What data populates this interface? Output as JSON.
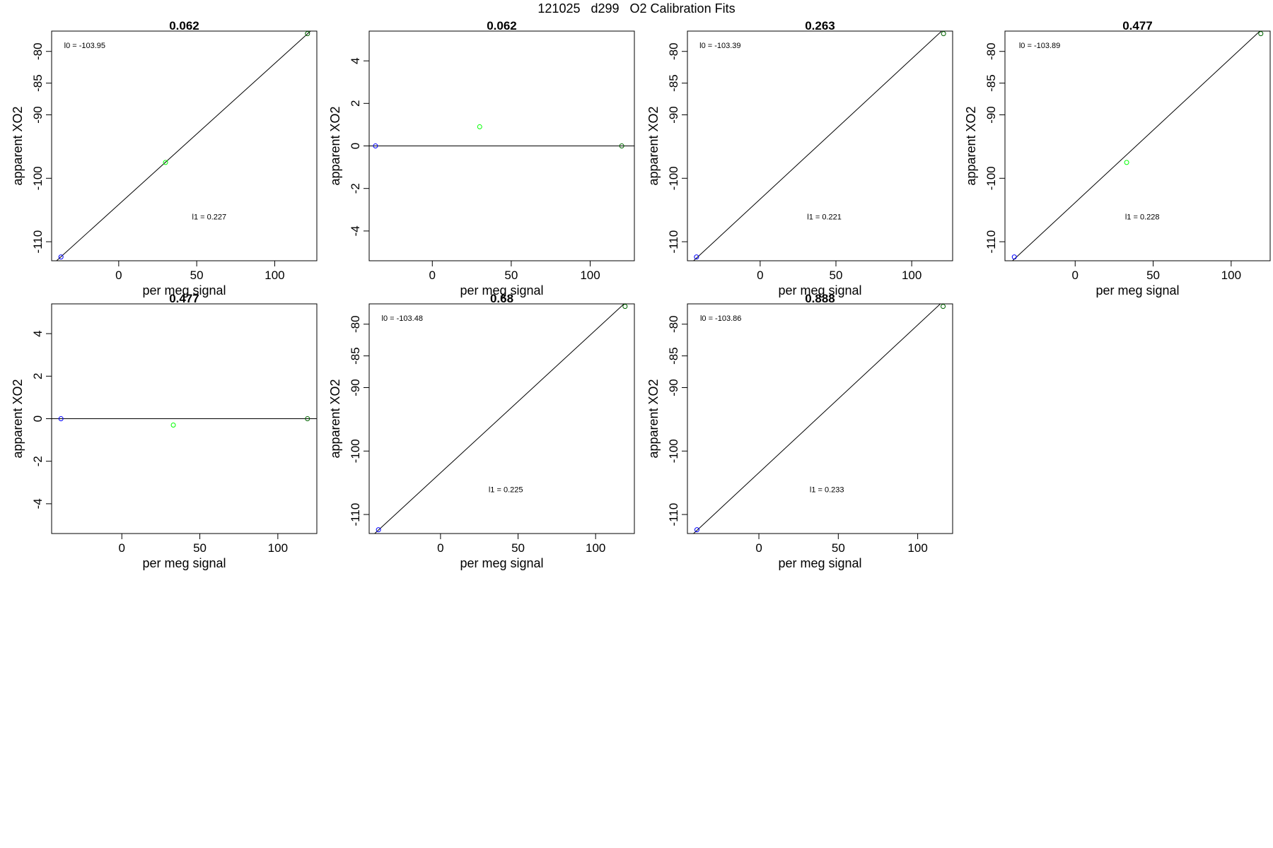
{
  "figure": {
    "title": "121025   d299   O2 Calibration Fits"
  },
  "chart_data": [
    {
      "type": "scatter",
      "title": "0.062",
      "xlabel": "per meg signal",
      "ylabel": "apparent XO2",
      "xlim": [
        -43,
        127
      ],
      "ylim": [
        -113,
        -76.8
      ],
      "xticks": [
        0,
        50,
        100
      ],
      "yticks": [
        -110,
        -100,
        -90,
        -85,
        -80
      ],
      "fit_line": {
        "x": [
          -43,
          127
        ],
        "y": [
          -113.7,
          -75.9
        ]
      },
      "points": [
        {
          "x": -37,
          "y": -112.4,
          "color": "#0000ff"
        },
        {
          "x": 30,
          "y": -97.5,
          "color": "#00ff00"
        },
        {
          "x": 121,
          "y": -77.2,
          "color": "#006400"
        }
      ],
      "annotations": [
        {
          "label": "l0 =  -103.95",
          "x": -35,
          "y": -79.5
        },
        {
          "label": "l1 =  0.227",
          "x": 47,
          "y": -106.5
        }
      ]
    },
    {
      "type": "scatter",
      "title": "0.062",
      "xlabel": "per meg signal",
      "ylabel": "apparent XO2",
      "xlim": [
        -40,
        128
      ],
      "ylim": [
        -5.4,
        5.4
      ],
      "xticks": [
        0,
        50,
        100
      ],
      "yticks": [
        -4,
        -2,
        0,
        2,
        4
      ],
      "fit_line": {
        "x": [
          -40,
          128
        ],
        "y": [
          0,
          0
        ]
      },
      "points": [
        {
          "x": -36,
          "y": 0,
          "color": "#0000ff"
        },
        {
          "x": 30,
          "y": 0.9,
          "color": "#00ff00"
        },
        {
          "x": 120,
          "y": 0,
          "color": "#006400"
        }
      ],
      "annotations": []
    },
    {
      "type": "scatter",
      "title": "0.263",
      "xlabel": "per meg signal",
      "ylabel": "apparent XO2",
      "xlim": [
        -48,
        127
      ],
      "ylim": [
        -113,
        -76.8
      ],
      "xticks": [
        0,
        50,
        100
      ],
      "yticks": [
        -110,
        -100,
        -90,
        -85,
        -80
      ],
      "fit_line": {
        "x": [
          -48,
          127
        ],
        "y": [
          -113.9,
          -75.2
        ]
      },
      "points": [
        {
          "x": -42,
          "y": -112.4,
          "color": "#0000ff"
        },
        {
          "x": 121,
          "y": -77.2,
          "color": "#006400"
        }
      ],
      "annotations": [
        {
          "label": "l0 =  -103.39",
          "x": -40,
          "y": -79.5
        },
        {
          "label": "l1 =  0.221",
          "x": 31,
          "y": -106.5
        }
      ]
    },
    {
      "type": "scatter",
      "title": "0.477",
      "xlabel": "per meg signal",
      "ylabel": "apparent XO2",
      "xlim": [
        -45,
        125
      ],
      "ylim": [
        -113,
        -76.8
      ],
      "xticks": [
        0,
        50,
        100
      ],
      "yticks": [
        -110,
        -100,
        -90,
        -85,
        -80
      ],
      "fit_line": {
        "x": [
          -45,
          125
        ],
        "y": [
          -114.1,
          -75.3
        ]
      },
      "points": [
        {
          "x": -39,
          "y": -112.4,
          "color": "#0000ff"
        },
        {
          "x": 33,
          "y": -97.5,
          "color": "#00ff00"
        },
        {
          "x": 119,
          "y": -77.2,
          "color": "#006400"
        }
      ],
      "annotations": [
        {
          "label": "l0 =  -103.89",
          "x": -36,
          "y": -79.5
        },
        {
          "label": "l1 =  0.228",
          "x": 32,
          "y": -106.5
        }
      ]
    },
    {
      "type": "scatter",
      "title": "0.477",
      "xlabel": "per meg signal",
      "ylabel": "apparent XO2",
      "xlim": [
        -45,
        125
      ],
      "ylim": [
        -5.4,
        5.4
      ],
      "xticks": [
        0,
        50,
        100
      ],
      "yticks": [
        -4,
        -2,
        0,
        2,
        4
      ],
      "fit_line": {
        "x": [
          -45,
          125
        ],
        "y": [
          0,
          0
        ]
      },
      "points": [
        {
          "x": -39,
          "y": 0,
          "color": "#0000ff"
        },
        {
          "x": 33,
          "y": -0.3,
          "color": "#00ff00"
        },
        {
          "x": 119,
          "y": 0,
          "color": "#006400"
        }
      ],
      "annotations": []
    },
    {
      "type": "scatter",
      "title": "0.68",
      "xlabel": "per meg signal",
      "ylabel": "apparent XO2",
      "xlim": [
        -46,
        125
      ],
      "ylim": [
        -113,
        -76.8
      ],
      "xticks": [
        0,
        50,
        100
      ],
      "yticks": [
        -110,
        -100,
        -90,
        -85,
        -80
      ],
      "fit_line": {
        "x": [
          -46,
          125
        ],
        "y": [
          -113.8,
          -75.3
        ]
      },
      "points": [
        {
          "x": -40,
          "y": -112.4,
          "color": "#0000ff"
        },
        {
          "x": 119,
          "y": -77.2,
          "color": "#006400"
        }
      ],
      "annotations": [
        {
          "label": "l0 =  -103.48",
          "x": -38,
          "y": -79.5
        },
        {
          "label": "l1 =  0.225",
          "x": 31,
          "y": -106.5
        }
      ]
    },
    {
      "type": "scatter",
      "title": "0.888",
      "xlabel": "per meg signal",
      "ylabel": "apparent XO2",
      "xlim": [
        -45,
        122
      ],
      "ylim": [
        -113,
        -76.8
      ],
      "xticks": [
        0,
        50,
        100
      ],
      "yticks": [
        -110,
        -100,
        -90,
        -85,
        -80
      ],
      "fit_line": {
        "x": [
          -45,
          122
        ],
        "y": [
          -113.9,
          -75.0
        ]
      },
      "points": [
        {
          "x": -39,
          "y": -112.4,
          "color": "#0000ff"
        },
        {
          "x": 116,
          "y": -77.2,
          "color": "#006400"
        }
      ],
      "annotations": [
        {
          "label": "l0 =  -103.86",
          "x": -37,
          "y": -79.5
        },
        {
          "label": "l1 =  0.233",
          "x": 32,
          "y": -106.5
        }
      ]
    }
  ]
}
